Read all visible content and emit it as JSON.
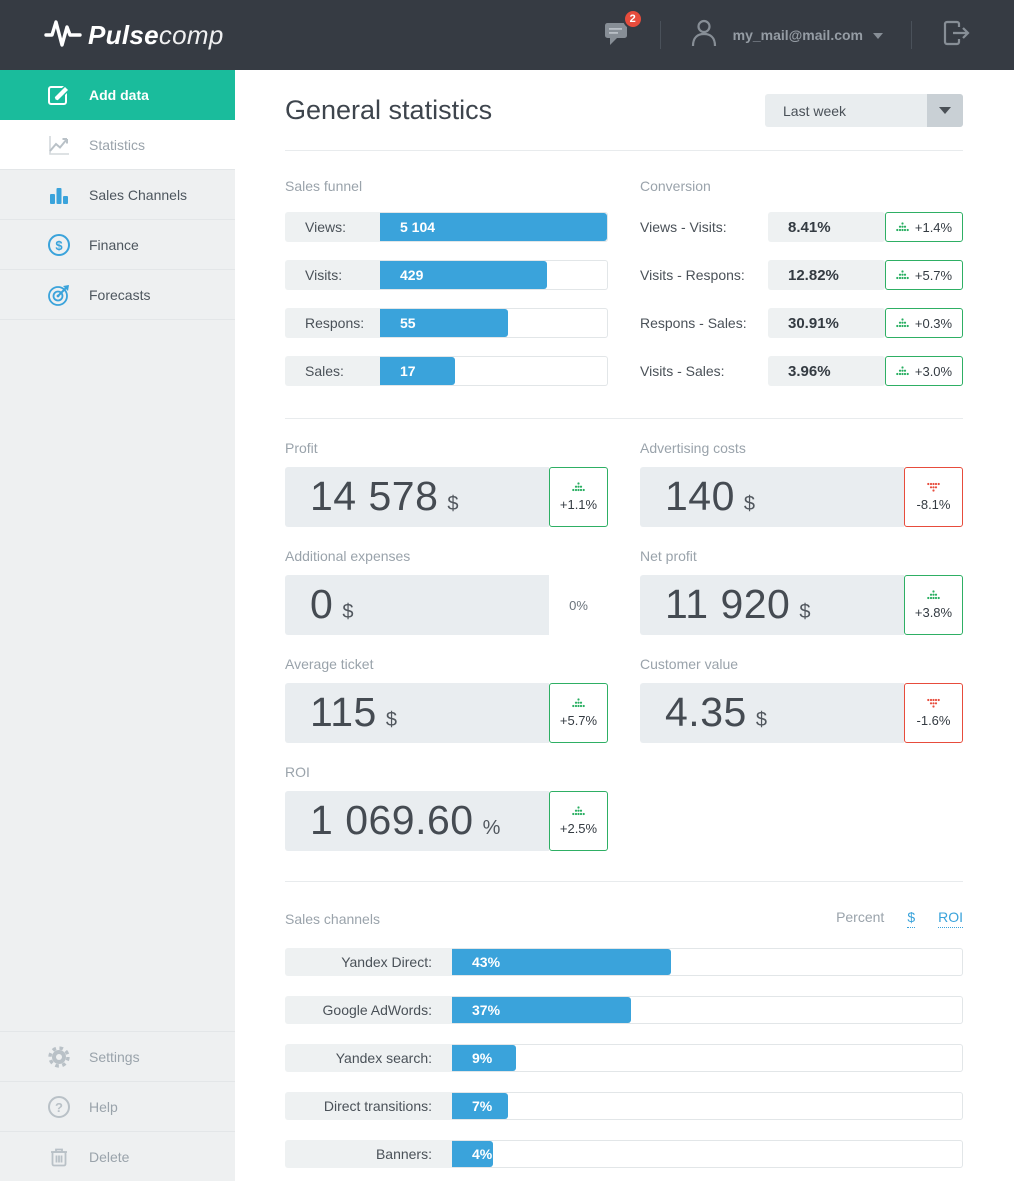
{
  "colors": {
    "accent_blue": "#3aa3db",
    "accent_green": "#2eaf64",
    "accent_red": "#e74c3c",
    "sidebar_active": "#1abc9c",
    "topbar_bg": "#363b43"
  },
  "topbar": {
    "logo_bold": "Pulse",
    "logo_light": "comp",
    "messages_badge": "2",
    "user_email": "my_mail@mail.com",
    "icons": [
      "pulse-logo-icon",
      "chat-icon",
      "user-icon",
      "caret-down-icon",
      "logout-icon"
    ]
  },
  "sidebar": {
    "items": [
      {
        "label": "Add data",
        "icon": "edit-icon",
        "active": true
      },
      {
        "label": "Statistics",
        "icon": "line-chart-icon",
        "active": false
      },
      {
        "label": "Sales Channels",
        "icon": "bar-chart-icon",
        "active": false
      },
      {
        "label": "Finance",
        "icon": "dollar-circle-icon",
        "active": false
      },
      {
        "label": "Forecasts",
        "icon": "target-icon",
        "active": false
      }
    ],
    "footer_items": [
      {
        "label": "Settings",
        "icon": "gear-icon"
      },
      {
        "label": "Help",
        "icon": "question-icon"
      },
      {
        "label": "Delete",
        "icon": "trash-icon"
      }
    ]
  },
  "header": {
    "title": "General statistics",
    "period_value": "Last week"
  },
  "funnel": {
    "title": "Sales funnel",
    "rows": [
      {
        "label": "Views:",
        "value": "5 104",
        "bar_pct": 100
      },
      {
        "label": "Visits:",
        "value": "429",
        "bar_pct": 73.5
      },
      {
        "label": "Respons:",
        "value": "55",
        "bar_pct": 56.5
      },
      {
        "label": "Sales:",
        "value": "17",
        "bar_pct": 33
      }
    ]
  },
  "conversion": {
    "title": "Conversion",
    "rows": [
      {
        "label": "Views - Visits:",
        "value": "8.41%",
        "delta": "+1.4%",
        "trend": "up"
      },
      {
        "label": "Visits - Respons:",
        "value": "12.82%",
        "delta": "+5.7%",
        "trend": "up"
      },
      {
        "label": "Respons - Sales:",
        "value": "30.91%",
        "delta": "+0.3%",
        "trend": "up"
      },
      {
        "label": "Visits - Sales:",
        "value": "3.96%",
        "delta": "+3.0%",
        "trend": "up"
      }
    ]
  },
  "metrics": [
    {
      "label": "Profit",
      "value": "14 578",
      "unit": "$",
      "delta": "+1.1%",
      "trend": "up"
    },
    {
      "label": "Advertising costs",
      "value": "140",
      "unit": "$",
      "delta": "-8.1%",
      "trend": "down"
    },
    {
      "label": "Additional expenses",
      "value": "0",
      "unit": "$",
      "delta": "0%",
      "trend": "flat"
    },
    {
      "label": "Net profit",
      "value": "11 920",
      "unit": "$",
      "delta": "+3.8%",
      "trend": "up"
    },
    {
      "label": "Average ticket",
      "value": "115",
      "unit": "$",
      "delta": "+5.7%",
      "trend": "up"
    },
    {
      "label": "Customer value",
      "value": "4.35",
      "unit": "$",
      "delta": "-1.6%",
      "trend": "down"
    },
    {
      "label": "ROI",
      "value": "1 069.60",
      "unit": "%",
      "delta": "+2.5%",
      "trend": "up"
    }
  ],
  "channels": {
    "title": "Sales channels",
    "modes": [
      {
        "label": "Percent",
        "active": true
      },
      {
        "label": "$",
        "active": false
      },
      {
        "label": "ROI",
        "active": false
      }
    ],
    "rows": [
      {
        "label": "Yandex Direct:",
        "value": "43%",
        "bar_pct": 43
      },
      {
        "label": "Google AdWords:",
        "value": "37%",
        "bar_pct": 35
      },
      {
        "label": "Yandex search:",
        "value": "9%",
        "bar_pct": 12.5
      },
      {
        "label": "Direct transitions:",
        "value": "7%",
        "bar_pct": 11
      },
      {
        "label": "Banners:",
        "value": "4%",
        "bar_pct": 8
      }
    ]
  }
}
